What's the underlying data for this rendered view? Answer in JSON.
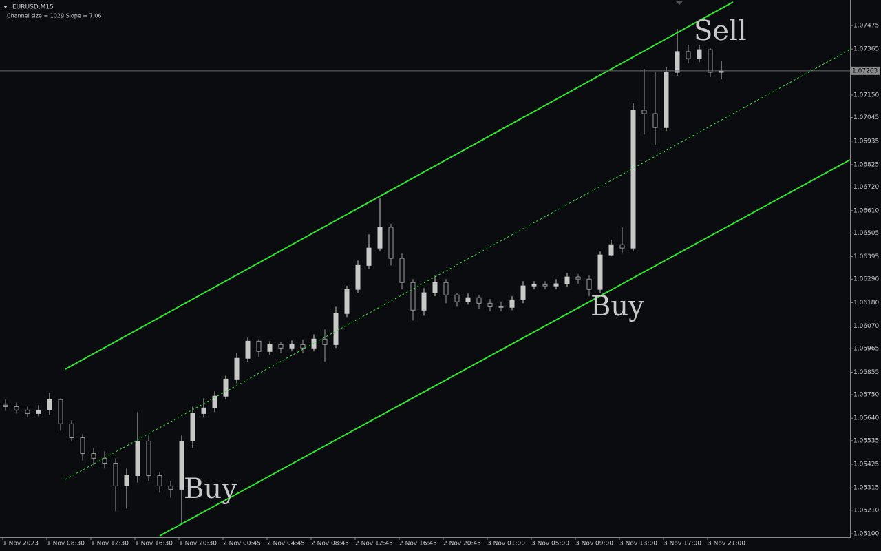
{
  "chart_data": {
    "type": "candlestick",
    "title": "EURUSD,M15",
    "subtitle": "Channel size = 1029 Slope = 7.06",
    "categories": [
      "1 Nov 2023",
      null,
      null,
      null,
      "1 Nov 08:30",
      null,
      null,
      null,
      "1 Nov 12:30",
      null,
      null,
      null,
      "1 Nov 16:30",
      null,
      null,
      null,
      "1 Nov 20:30",
      null,
      null,
      null,
      "2 Nov 00:45",
      null,
      null,
      null,
      "2 Nov 04:45",
      null,
      null,
      null,
      "2 Nov 08:45",
      null,
      null,
      null,
      "2 Nov 12:45",
      null,
      null,
      null,
      "2 Nov 16:45",
      null,
      null,
      null,
      "2 Nov 20:45",
      null,
      null,
      null,
      "3 Nov 01:00",
      null,
      null,
      null,
      "3 Nov 05:00",
      null,
      null,
      null,
      "3 Nov 09:00",
      null,
      null,
      null,
      "3 Nov 13:00",
      null,
      null,
      null,
      "3 Nov 17:00",
      null,
      null,
      null,
      "3 Nov 21:00",
      null
    ],
    "open": [
      1.05701,
      1.05694,
      1.05678,
      1.05662,
      1.05678,
      1.05727,
      1.05614,
      1.05549,
      1.05475,
      1.05453,
      1.0543,
      1.05324,
      1.05372,
      1.05533,
      1.05372,
      1.05324,
      1.05308,
      1.05533,
      1.05662,
      1.05688,
      1.05743,
      1.05823,
      1.0592,
      1.06,
      1.05952,
      1.05984,
      1.05968,
      1.05984,
      1.05968,
      1.0601,
      1.05984,
      1.06129,
      1.06242,
      1.06354,
      1.06435,
      1.06532,
      1.06387,
      1.06274,
      1.06145,
      1.06226,
      1.06274,
      1.06216,
      1.06184,
      1.06203,
      1.06177,
      1.06161,
      1.06158,
      1.06193,
      1.06258,
      1.06264,
      1.06258,
      1.06268,
      1.063,
      1.0629,
      1.06242,
      1.06403,
      1.06451,
      1.06435,
      1.07079,
      1.07063,
      1.06998,
      1.07256,
      1.07353,
      1.0732,
      1.07362,
      1.07256
    ],
    "high": [
      1.05727,
      1.05713,
      1.05694,
      1.05701,
      1.05759,
      1.05733,
      1.0563,
      1.05566,
      1.05501,
      1.05485,
      1.05453,
      1.05405,
      1.05669,
      1.05559,
      1.05388,
      1.05347,
      1.05559,
      1.05694,
      1.05733,
      1.05765,
      1.05839,
      1.05945,
      1.06016,
      1.0601,
      1.06,
      1.05997,
      1.06003,
      1.06007,
      1.06032,
      1.06055,
      1.06161,
      1.06258,
      1.06377,
      1.06499,
      1.06667,
      1.06548,
      1.06409,
      1.0629,
      1.06248,
      1.06306,
      1.0629,
      1.06226,
      1.06222,
      1.06216,
      1.06197,
      1.06184,
      1.0621,
      1.0628,
      1.0628,
      1.0628,
      1.0629,
      1.06319,
      1.06313,
      1.06306,
      1.06419,
      1.06474,
      1.06532,
      1.07111,
      1.07272,
      1.07256,
      1.07279,
      1.07459,
      1.07385,
      1.07385,
      1.07369,
      1.07311
    ],
    "low": [
      1.05675,
      1.05662,
      1.05643,
      1.05649,
      1.05656,
      1.05582,
      1.05533,
      1.05443,
      1.05421,
      1.05405,
      1.05205,
      1.05218,
      1.0534,
      1.05347,
      1.05292,
      1.05269,
      1.05147,
      1.05501,
      1.05643,
      1.05669,
      1.05727,
      1.05804,
      1.05904,
      1.05926,
      1.05936,
      1.05945,
      1.05952,
      1.05945,
      1.05952,
      1.05904,
      1.05968,
      1.06113,
      1.06226,
      1.06338,
      1.06419,
      1.06354,
      1.06242,
      1.06097,
      1.06119,
      1.0621,
      1.06177,
      1.06161,
      1.06171,
      1.06152,
      1.06139,
      1.06139,
      1.06145,
      1.06177,
      1.06242,
      1.06242,
      1.06242,
      1.06255,
      1.06268,
      1.0621,
      1.06226,
      1.06396,
      1.06409,
      1.06419,
      1.06966,
      1.06918,
      1.06982,
      1.0724,
      1.07298,
      1.07304,
      1.07234,
      1.07224
    ],
    "close": [
      1.05694,
      1.05678,
      1.05662,
      1.05678,
      1.05727,
      1.05614,
      1.05549,
      1.05475,
      1.05453,
      1.0543,
      1.05324,
      1.05372,
      1.05533,
      1.05372,
      1.05324,
      1.05308,
      1.05533,
      1.05662,
      1.05688,
      1.05743,
      1.05823,
      1.0592,
      1.06,
      1.05952,
      1.05984,
      1.05968,
      1.05984,
      1.05968,
      1.0601,
      1.05984,
      1.06129,
      1.06242,
      1.06354,
      1.06435,
      1.06532,
      1.06387,
      1.06274,
      1.06145,
      1.06226,
      1.06274,
      1.06216,
      1.06184,
      1.06203,
      1.06177,
      1.06161,
      1.06158,
      1.06193,
      1.06258,
      1.06264,
      1.06258,
      1.06268,
      1.063,
      1.0629,
      1.06242,
      1.06403,
      1.06451,
      1.06435,
      1.07079,
      1.07063,
      1.06998,
      1.07256,
      1.07353,
      1.0732,
      1.07362,
      1.07256,
      1.07263
    ],
    "up_color": "#c8c8c8",
    "down_color": "#9a9a9a",
    "current_price": 1.07263,
    "ylim": [
      1.05084,
      1.07594
    ],
    "yticks": [
      1.07475,
      1.07365,
      {
        "value": 1.0715,
        "label": "1.07150"
      },
      1.07045,
      1.06935,
      1.06825,
      {
        "value": 1.0672,
        "label": "1.06720"
      },
      {
        "value": 1.0661,
        "label": "1.06610"
      },
      1.06505,
      1.06395,
      {
        "value": 1.0629,
        "label": "1.06290"
      },
      {
        "value": 1.0618,
        "label": "1.06180"
      },
      {
        "value": 1.0607,
        "label": "1.06070"
      },
      1.05965,
      1.05855,
      {
        "value": 1.0575,
        "label": "1.05750"
      },
      {
        "value": 1.0564,
        "label": "1.05640"
      },
      1.05535,
      1.05425,
      1.05315,
      {
        "value": 1.0521,
        "label": "1.05210"
      },
      {
        "value": 1.051,
        "label": "1.05100"
      }
    ],
    "annotations": [
      "Sell",
      "Buy",
      "Buy"
    ]
  }
}
